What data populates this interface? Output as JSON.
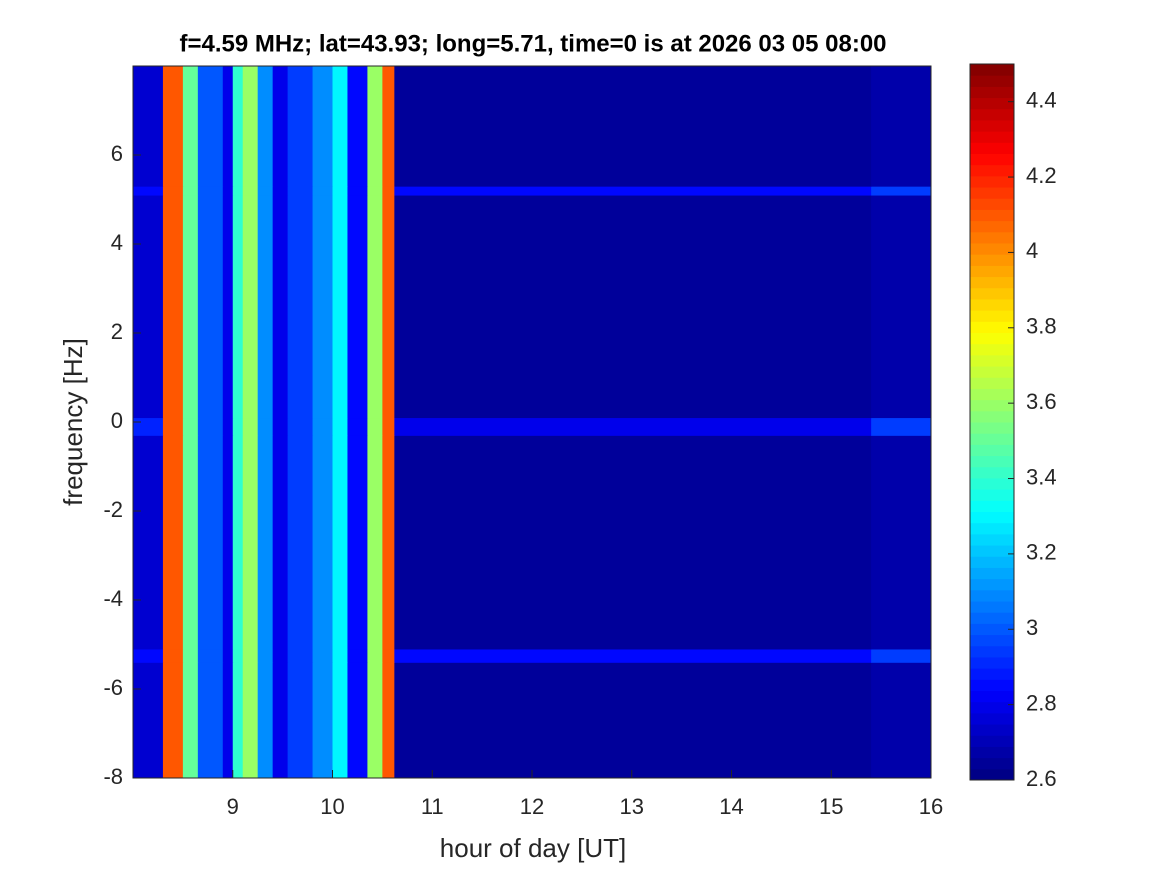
{
  "chart_data": {
    "type": "heatmap",
    "title": "f=4.59 MHz;  lat=43.93; long=5.71, time=0 is at 2026 03 05 08:00",
    "xlabel": "hour of day [UT]",
    "ylabel": "frequency [Hz]",
    "xlim": [
      8,
      16
    ],
    "ylim": [
      -8,
      8
    ],
    "xticks": [
      9,
      10,
      11,
      12,
      13,
      14,
      15,
      16
    ],
    "yticks": [
      -8,
      -6,
      -4,
      -2,
      0,
      2,
      4,
      6
    ],
    "x_edges": [
      8,
      8.3,
      8.5,
      8.65,
      8.9,
      9.0,
      9.1,
      9.25,
      9.4,
      9.55,
      9.8,
      10.0,
      10.15,
      10.35,
      10.5,
      10.62,
      15.4,
      16
    ],
    "y_edges": [
      -8,
      -5.4,
      -5.1,
      -0.3,
      0.1,
      5.1,
      5.3,
      8
    ],
    "z": [
      [
        2.75,
        4.1,
        3.5,
        3.0,
        2.8,
        3.4,
        3.6,
        3.1,
        2.8,
        2.95,
        3.1,
        3.3,
        2.85,
        3.6,
        4.1,
        2.65,
        2.68
      ],
      [
        2.85,
        4.1,
        3.5,
        3.0,
        2.8,
        3.4,
        3.6,
        3.1,
        2.8,
        2.95,
        3.1,
        3.3,
        2.85,
        3.6,
        4.1,
        2.85,
        2.95
      ],
      [
        2.75,
        4.1,
        3.5,
        3.0,
        2.8,
        3.4,
        3.6,
        3.1,
        2.8,
        2.95,
        3.1,
        3.3,
        2.85,
        3.6,
        4.1,
        2.65,
        2.68
      ],
      [
        2.9,
        4.1,
        3.5,
        3.0,
        2.8,
        3.4,
        3.6,
        3.1,
        2.8,
        2.95,
        3.1,
        3.3,
        2.85,
        3.6,
        4.1,
        2.8,
        2.95
      ],
      [
        2.75,
        4.1,
        3.5,
        3.0,
        2.8,
        3.4,
        3.6,
        3.1,
        2.8,
        2.95,
        3.1,
        3.3,
        2.85,
        3.6,
        4.1,
        2.65,
        2.68
      ],
      [
        2.85,
        4.1,
        3.5,
        3.0,
        2.8,
        3.4,
        3.6,
        3.1,
        2.8,
        2.95,
        3.1,
        3.3,
        2.85,
        3.6,
        4.1,
        2.85,
        2.95
      ],
      [
        2.75,
        4.1,
        3.5,
        3.0,
        2.8,
        3.4,
        3.6,
        3.1,
        2.8,
        2.95,
        3.1,
        3.3,
        2.85,
        3.6,
        4.1,
        2.65,
        2.68
      ]
    ],
    "colormap": "jet",
    "zlim": [
      2.6,
      4.5
    ],
    "zticks": [
      2.6,
      2.8,
      3,
      3.2,
      3.4,
      3.6,
      3.8,
      4,
      4.2,
      4.4
    ]
  }
}
